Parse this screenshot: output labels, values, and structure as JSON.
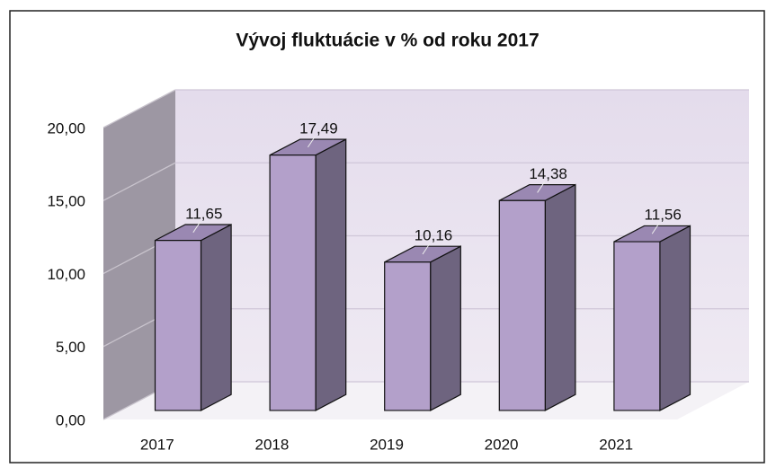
{
  "chart_data": {
    "type": "bar3d",
    "title": "Vývoj fluktuácie v % od roku 2017",
    "categories": [
      "2017",
      "2018",
      "2019",
      "2020",
      "2021"
    ],
    "values": [
      11.65,
      17.49,
      10.16,
      14.38,
      11.56
    ],
    "value_labels": [
      "11,65",
      "17,49",
      "10,16",
      "14,38",
      "11,56"
    ],
    "color": "#b3a0ca",
    "ylim": [
      0,
      20
    ],
    "yticks": [
      {
        "value": 0,
        "label": "0,00"
      },
      {
        "value": 5,
        "label": "5,00"
      },
      {
        "value": 10,
        "label": "10,00"
      },
      {
        "value": 15,
        "label": "15,00"
      },
      {
        "value": 20,
        "label": "20,00"
      }
    ],
    "grid": true
  }
}
